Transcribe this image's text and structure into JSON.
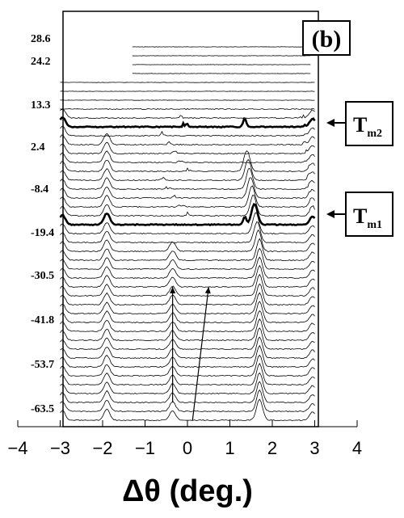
{
  "chart_data": {
    "type": "line",
    "panel_label": "(b)",
    "title": "",
    "xlabel": "Δθ  (deg.)",
    "ylabel": "",
    "xlim": [
      -4,
      4
    ],
    "xticks": [
      "−4",
      "−3",
      "−2",
      "−1",
      "0",
      "1",
      "2",
      "3",
      "4"
    ],
    "grid": false,
    "temperature_labels": [
      "28.6",
      "24.2",
      "13.3",
      "2.4",
      "-8.4",
      "-19.4",
      "-30.5",
      "-41.8",
      "-53.7",
      "-63.5"
    ],
    "trace_count": 43,
    "trace_x_range": [
      -3,
      3
    ],
    "bold_traces": [
      {
        "name": "T",
        "subscript": "m2",
        "trace_index": 9
      },
      {
        "name": "T",
        "subscript": "m1",
        "trace_index": 20
      }
    ],
    "peaks": [
      {
        "x": -2.95,
        "from_trace": 8,
        "to_trace": 42,
        "height": 12
      },
      {
        "x": -1.9,
        "from_trace": 11,
        "to_trace": 42,
        "height": 14
      },
      {
        "x": -0.35,
        "from_trace": 23,
        "to_trace": 42,
        "height": 12
      },
      {
        "x": 1.7,
        "from_trace": 14,
        "to_trace": 42,
        "height": 26
      },
      {
        "x": 2.95,
        "from_trace": 8,
        "to_trace": 42,
        "height": 10
      }
    ],
    "arrows": [
      {
        "from": [
          -0.35,
          40
        ],
        "to": [
          -0.35,
          27
        ]
      },
      {
        "from": [
          0.12,
          42
        ],
        "to": [
          0.5,
          27
        ]
      }
    ],
    "colors": {
      "line": "#000000",
      "background": "#ffffff"
    }
  }
}
